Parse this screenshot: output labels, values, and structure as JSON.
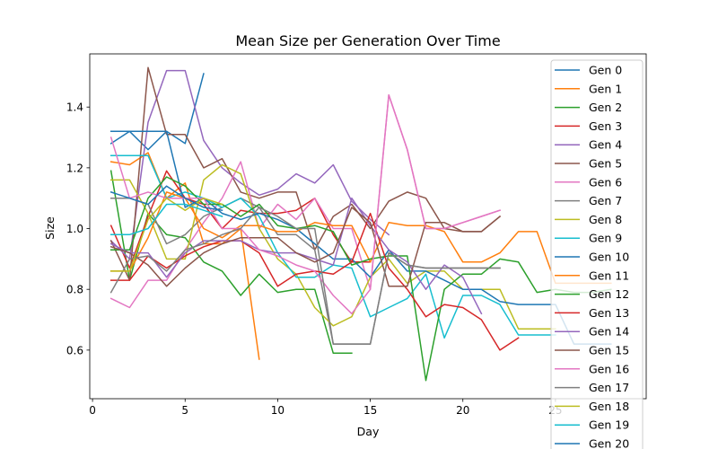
{
  "chart_data": {
    "type": "line",
    "title": "Mean Size per Generation Over Time",
    "xlabel": "Day",
    "ylabel": "Size",
    "xlim": [
      -0.15,
      29.9
    ],
    "ylim": [
      0.44,
      1.575
    ],
    "xticks": [
      0,
      5,
      10,
      15,
      20,
      25
    ],
    "yticks": [
      0.6,
      0.8,
      1.0,
      1.2,
      1.4
    ],
    "xtick_labels": [
      "0",
      "5",
      "10",
      "15",
      "20",
      "25"
    ],
    "ytick_labels": [
      "0.6",
      "0.8",
      "1.0",
      "1.2",
      "1.4"
    ],
    "grid": false,
    "legend": "upper-right",
    "series": [
      {
        "name": "Gen 0",
        "color": "#1f77b4",
        "x": [
          1,
          2,
          3,
          4,
          5,
          6
        ],
        "y": [
          1.28,
          1.32,
          1.26,
          1.32,
          1.28,
          1.51
        ]
      },
      {
        "name": "Gen 1",
        "color": "#ff7f0e",
        "x": [
          1,
          2,
          3,
          4,
          5,
          6,
          7,
          8,
          9
        ],
        "y": [
          1.22,
          1.21,
          1.25,
          1.1,
          1.15,
          0.95,
          0.95,
          1.0,
          0.57
        ]
      },
      {
        "name": "Gen 2",
        "color": "#2ca02c",
        "x": [
          1,
          2,
          3,
          4,
          5,
          6,
          7,
          8,
          9,
          10,
          11,
          12,
          13,
          14
        ],
        "y": [
          1.19,
          0.83,
          1.05,
          0.98,
          0.97,
          0.89,
          0.86,
          0.78,
          0.85,
          0.79,
          0.8,
          0.8,
          0.59,
          0.59
        ]
      },
      {
        "name": "Gen 3",
        "color": "#d62728",
        "x": [
          1,
          2,
          3,
          4,
          5,
          6,
          7,
          8,
          9,
          10,
          11,
          12,
          13,
          14,
          15
        ],
        "y": [
          1.01,
          0.87,
          1.04,
          1.19,
          1.1,
          1.08,
          1.0,
          1.06,
          1.05,
          1.05,
          1.06,
          1.1,
          0.98,
          0.89,
          0.89
        ]
      },
      {
        "name": "Gen 4",
        "color": "#9467bd",
        "x": [
          1,
          2,
          3,
          4,
          5,
          6,
          7,
          8,
          9,
          10,
          11,
          12,
          13,
          14,
          15,
          16
        ],
        "y": [
          0.96,
          0.9,
          1.35,
          1.52,
          1.52,
          1.29,
          1.2,
          1.15,
          1.11,
          1.13,
          1.18,
          1.15,
          1.21,
          1.09,
          1.03,
          0.98
        ]
      },
      {
        "name": "Gen 5",
        "color": "#8c564b",
        "x": [
          1,
          2,
          3,
          4,
          5,
          6,
          7,
          8,
          9,
          10,
          11,
          12,
          13,
          14,
          15,
          16,
          17,
          18,
          19,
          20,
          21,
          22
        ],
        "y": [
          0.96,
          0.83,
          1.53,
          1.31,
          1.31,
          1.2,
          1.23,
          1.12,
          1.1,
          1.12,
          1.12,
          0.93,
          1.04,
          1.08,
          1.0,
          1.09,
          1.12,
          1.1,
          1.0,
          0.99,
          0.99,
          1.04
        ]
      },
      {
        "name": "Gen 6",
        "color": "#e377c2",
        "x": [
          1,
          2,
          3,
          4,
          5,
          6,
          7,
          8,
          9,
          10,
          11,
          12,
          13,
          14,
          15,
          16,
          17,
          18,
          19,
          20,
          21,
          22
        ],
        "y": [
          0.77,
          0.74,
          0.83,
          0.83,
          0.93,
          1.02,
          1.1,
          1.22,
          1.0,
          1.08,
          1.03,
          1.1,
          1.0,
          1.0,
          0.8,
          1.44,
          1.26,
          1.0,
          1.0,
          1.02,
          1.04,
          1.06
        ]
      },
      {
        "name": "Gen 7",
        "color": "#7f7f7f",
        "x": [
          1,
          2,
          3,
          4,
          5,
          6,
          7,
          8,
          9,
          10,
          11,
          12,
          13,
          14,
          15,
          16,
          17,
          18,
          19,
          20,
          21,
          22
        ],
        "y": [
          1.1,
          1.1,
          1.08,
          0.95,
          0.98,
          1.04,
          1.07,
          1.1,
          1.07,
          0.98,
          0.98,
          0.93,
          0.62,
          0.62,
          0.62,
          0.92,
          0.88,
          0.87,
          0.87,
          0.87,
          0.87,
          0.87
        ]
      },
      {
        "name": "Gen 8",
        "color": "#bcbd22",
        "x": [
          1,
          2,
          3,
          4,
          5,
          6,
          7,
          8,
          9,
          10,
          11,
          12,
          13,
          14,
          15,
          16,
          17,
          18,
          19,
          20,
          21,
          22,
          23,
          24,
          25
        ],
        "y": [
          1.16,
          1.16,
          1.05,
          0.9,
          0.9,
          1.16,
          1.21,
          1.18,
          1.0,
          0.9,
          0.85,
          0.74,
          0.68,
          0.71,
          0.84,
          0.9,
          0.82,
          0.86,
          0.86,
          0.8,
          0.8,
          0.8,
          0.67,
          0.67,
          0.67
        ]
      },
      {
        "name": "Gen 9",
        "color": "#17becf",
        "x": [
          1,
          2,
          3,
          4,
          5,
          6,
          7,
          8,
          9,
          10,
          11,
          12,
          13,
          14,
          15,
          16,
          17,
          18,
          19,
          20,
          21,
          22,
          23,
          24,
          25
        ],
        "y": [
          1.24,
          1.24,
          1.24,
          1.1,
          1.12,
          1.1,
          1.07,
          1.1,
          1.04,
          0.92,
          0.84,
          0.84,
          0.88,
          0.87,
          0.71,
          0.74,
          0.77,
          0.85,
          0.64,
          0.78,
          0.78,
          0.75,
          0.65,
          0.65,
          0.65
        ]
      },
      {
        "name": "Gen 10",
        "color": "#1f77b4",
        "x": [
          1,
          2,
          3,
          4,
          5,
          6,
          7,
          8,
          9,
          10,
          11,
          12,
          13,
          14,
          15,
          16,
          17,
          18,
          19,
          20,
          21,
          22,
          23,
          24,
          25,
          26,
          27,
          28
        ],
        "y": [
          1.32,
          1.32,
          1.32,
          1.32,
          1.07,
          1.1,
          1.05,
          1.03,
          1.05,
          1.03,
          1.0,
          0.95,
          0.9,
          0.9,
          0.84,
          0.93,
          0.86,
          0.86,
          0.83,
          0.8,
          0.8,
          0.76,
          0.75,
          0.75,
          0.75,
          0.62,
          0.62,
          0.62
        ]
      },
      {
        "name": "Gen 11",
        "color": "#ff7f0e",
        "x": [
          1,
          2,
          3,
          4,
          5,
          6,
          7,
          8,
          9,
          10,
          11,
          12,
          13,
          14,
          15,
          16,
          17,
          18,
          19,
          20,
          21,
          22,
          23,
          24,
          25,
          26,
          27,
          28
        ],
        "y": [
          0.86,
          0.86,
          0.97,
          1.12,
          1.1,
          1.0,
          0.97,
          1.01,
          1.01,
          0.99,
          0.99,
          1.02,
          1.01,
          1.01,
          0.89,
          1.02,
          1.01,
          1.01,
          0.99,
          0.89,
          0.89,
          0.92,
          0.99,
          0.99,
          0.82,
          0.82,
          0.82,
          0.82
        ]
      },
      {
        "name": "Gen 12",
        "color": "#2ca02c",
        "x": [
          1,
          2,
          3,
          4,
          5,
          6,
          7,
          8,
          9,
          10,
          11,
          12,
          13,
          14,
          15,
          16,
          17,
          18,
          19,
          20,
          21,
          22,
          23,
          24,
          25,
          26,
          27,
          28
        ],
        "y": [
          0.93,
          0.93,
          1.1,
          1.17,
          1.14,
          1.08,
          1.08,
          1.04,
          1.08,
          1.01,
          1.0,
          1.01,
          0.99,
          0.88,
          0.9,
          0.91,
          0.91,
          0.5,
          0.8,
          0.85,
          0.85,
          0.9,
          0.89,
          0.79,
          0.8,
          0.79,
          0.79,
          0.8
        ]
      },
      {
        "name": "Gen 13",
        "color": "#d62728",
        "x": [
          1,
          2,
          3,
          4,
          5,
          6,
          7,
          8,
          9,
          10,
          11,
          12,
          13,
          14,
          15,
          16,
          17,
          18,
          19,
          20,
          21,
          22,
          23
        ],
        "y": [
          0.83,
          0.83,
          0.91,
          0.87,
          0.91,
          0.94,
          0.96,
          0.96,
          0.92,
          0.81,
          0.85,
          0.86,
          0.85,
          0.89,
          1.05,
          0.87,
          0.8,
          0.71,
          0.75,
          0.74,
          0.7,
          0.6,
          0.64
        ]
      },
      {
        "name": "Gen 14",
        "color": "#9467bd",
        "x": [
          1,
          2,
          3,
          4,
          5,
          6,
          7,
          8,
          9,
          10,
          11,
          12,
          13,
          14,
          15,
          16,
          17,
          18,
          19,
          20,
          21
        ],
        "y": [
          0.95,
          0.92,
          0.92,
          0.84,
          0.92,
          0.96,
          0.96,
          0.96,
          0.93,
          0.92,
          0.92,
          0.9,
          0.88,
          1.1,
          1.01,
          0.93,
          0.89,
          0.8,
          0.88,
          0.84,
          0.72
        ]
      },
      {
        "name": "Gen 15",
        "color": "#8c564b",
        "x": [
          1,
          2,
          3,
          4,
          5,
          6,
          7,
          8,
          9,
          10,
          11,
          12,
          13,
          14,
          15,
          16,
          17,
          18,
          19,
          20,
          21,
          22
        ],
        "y": [
          0.94,
          0.92,
          0.88,
          0.81,
          0.87,
          0.92,
          0.95,
          0.97,
          0.97,
          0.97,
          0.92,
          0.89,
          0.92,
          1.07,
          1.02,
          0.81,
          0.81,
          1.02,
          1.02,
          0.99,
          0.99,
          1.04
        ]
      },
      {
        "name": "Gen 16",
        "color": "#e377c2",
        "x": [
          1,
          2,
          3,
          4,
          5,
          6,
          7,
          8,
          9,
          10,
          11,
          12,
          13,
          14,
          15,
          16,
          17,
          18,
          19,
          20,
          21,
          22
        ],
        "y": [
          1.3,
          1.1,
          1.12,
          1.1,
          1.1,
          1.1,
          1.0,
          1.0,
          0.93,
          0.91,
          0.88,
          0.86,
          0.78,
          0.72,
          0.8,
          1.44,
          1.26,
          1.0,
          1.0,
          1.02,
          1.04,
          1.06
        ]
      },
      {
        "name": "Gen 17",
        "color": "#7f7f7f",
        "x": [
          1,
          2,
          3,
          4,
          5,
          6,
          7,
          8,
          9,
          10,
          11,
          12,
          13,
          14,
          15,
          16,
          17,
          18,
          19,
          20,
          21,
          22
        ],
        "y": [
          0.79,
          0.9,
          0.91,
          0.86,
          0.93,
          0.95,
          0.98,
          1.0,
          1.07,
          1.04,
          1.0,
          1.0,
          0.62,
          0.62,
          0.62,
          0.92,
          0.88,
          0.87,
          0.87,
          0.87,
          0.87,
          0.87
        ]
      },
      {
        "name": "Gen 18",
        "color": "#bcbd22",
        "x": [
          1,
          2,
          3,
          4,
          5,
          6,
          7
        ],
        "y": [
          0.86,
          0.86,
          1.03,
          1.1,
          1.06,
          1.1,
          1.08
        ]
      },
      {
        "name": "Gen 19",
        "color": "#17becf",
        "x": [
          1,
          2,
          3,
          4,
          5,
          6,
          7
        ],
        "y": [
          0.98,
          0.98,
          1.0,
          1.08,
          1.08,
          1.06,
          1.04
        ]
      },
      {
        "name": "Gen 20",
        "color": "#1f77b4",
        "x": [
          1,
          2,
          3,
          4,
          5,
          6,
          7
        ],
        "y": [
          1.12,
          1.1,
          1.08,
          1.14,
          1.1,
          1.07,
          1.06
        ]
      }
    ]
  }
}
